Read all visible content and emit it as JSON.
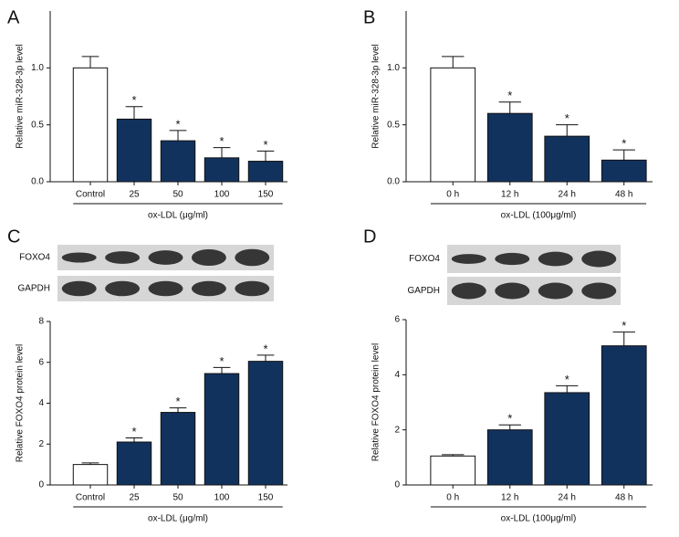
{
  "chart_data": [
    {
      "type": "bar",
      "panel": "A",
      "y_label": "Relative miR-328-3p level",
      "categories": [
        "Control",
        "25",
        "50",
        "100",
        "150"
      ],
      "values": [
        1.0,
        0.55,
        0.36,
        0.21,
        0.18
      ],
      "errors": [
        0.1,
        0.11,
        0.09,
        0.09,
        0.09
      ],
      "significance": [
        null,
        "*",
        "*",
        "*",
        "*"
      ],
      "group_label": "ox-LDL (μg/ml)",
      "colors": [
        "#ffffff",
        "#12325e",
        "#12325e",
        "#12325e",
        "#12325e"
      ],
      "ylim": [
        0,
        1.5
      ],
      "yticks": [
        {
          "value": 0,
          "label": "0.0"
        },
        {
          "value": 0.5,
          "label": "0.5"
        },
        {
          "value": 1,
          "label": "1.0"
        }
      ]
    },
    {
      "type": "bar",
      "panel": "B",
      "y_label": "Relative miR-328-3p level",
      "categories": [
        "0 h",
        "12 h",
        "24 h",
        "48 h"
      ],
      "values": [
        1.0,
        0.6,
        0.4,
        0.19
      ],
      "errors": [
        0.1,
        0.1,
        0.1,
        0.09
      ],
      "significance": [
        null,
        "*",
        "*",
        "*"
      ],
      "group_label": "ox-LDL (100μg/ml)",
      "colors": [
        "#ffffff",
        "#12325e",
        "#12325e",
        "#12325e"
      ],
      "ylim": [
        0,
        1.5
      ],
      "yticks": [
        {
          "value": 0,
          "label": "0.0"
        },
        {
          "value": 0.5,
          "label": "0.5"
        },
        {
          "value": 1,
          "label": "1.0"
        }
      ]
    },
    {
      "type": "bar",
      "panel": "C",
      "y_label": "Relative FOXO4 protein level",
      "blot_labels": [
        "FOXO4",
        "GAPDH"
      ],
      "categories": [
        "Control",
        "25",
        "50",
        "100",
        "150"
      ],
      "values": [
        1.0,
        2.1,
        3.55,
        5.45,
        6.05
      ],
      "errors": [
        0.08,
        0.2,
        0.22,
        0.3,
        0.3
      ],
      "significance": [
        null,
        "*",
        "*",
        "*",
        "*"
      ],
      "group_label": "ox-LDL (μg/ml)",
      "colors": [
        "#ffffff",
        "#12325e",
        "#12325e",
        "#12325e",
        "#12325e"
      ],
      "ylim": [
        0,
        8
      ],
      "yticks": [
        0,
        2,
        4,
        6,
        8
      ]
    },
    {
      "type": "bar",
      "panel": "D",
      "y_label": "Relative FOXO4 protein level",
      "blot_labels": [
        "FOXO4",
        "GAPDH"
      ],
      "categories": [
        "0 h",
        "12 h",
        "24 h",
        "48 h"
      ],
      "values": [
        1.05,
        2.0,
        3.35,
        5.05
      ],
      "errors": [
        0.05,
        0.18,
        0.25,
        0.5
      ],
      "significance": [
        null,
        "*",
        "*",
        "*"
      ],
      "group_label": "ox-LDL (100μg/ml)",
      "colors": [
        "#ffffff",
        "#12325e",
        "#12325e",
        "#12325e"
      ],
      "ylim": [
        0,
        6
      ],
      "yticks": [
        0,
        2,
        4,
        6
      ]
    }
  ]
}
